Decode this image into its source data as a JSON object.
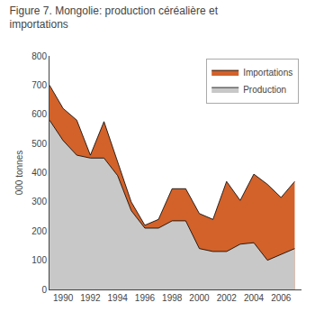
{
  "chart_data": {
    "type": "area",
    "title": "Figure 7. Mongolie: production céréalière et importations",
    "x": [
      1989,
      1990,
      1991,
      1992,
      1993,
      1994,
      1995,
      1996,
      1997,
      1998,
      1999,
      2000,
      2001,
      2002,
      2003,
      2004,
      2005,
      2006,
      2007
    ],
    "series": [
      {
        "name": "Importations",
        "color": "#D2622A",
        "values": [
          700,
          620,
          580,
          460,
          575,
          440,
          300,
          220,
          240,
          345,
          345,
          260,
          240,
          370,
          305,
          395,
          360,
          315,
          370
        ]
      },
      {
        "name": "Production",
        "color": "#C8C8C8",
        "values": [
          580,
          510,
          460,
          450,
          450,
          390,
          270,
          210,
          210,
          235,
          235,
          140,
          130,
          130,
          155,
          160,
          100,
          120,
          140
        ]
      }
    ],
    "ylabel": "000 tonnes",
    "xlim": [
      1989,
      2007.5
    ],
    "xticks": [
      1990,
      1992,
      1994,
      1996,
      1998,
      2000,
      2002,
      2004,
      2006
    ],
    "ylim": [
      0,
      800
    ],
    "yticks": [
      0,
      100,
      200,
      300,
      400,
      500,
      600,
      700,
      800
    ],
    "grid": false,
    "legend": "upper right"
  }
}
